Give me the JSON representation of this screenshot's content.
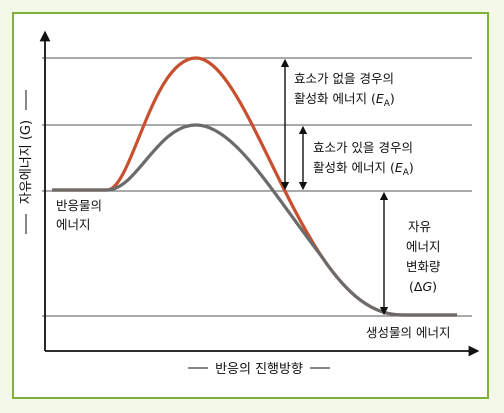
{
  "colors": {
    "frame_background": "#f4f8e6",
    "frame_border": "#7fb03a",
    "uncatalyzed_curve": "#c8502e",
    "catalyzed_curve": "#6b6b6b",
    "reference_lines": "#777777",
    "axes": "#111111"
  },
  "axes": {
    "y_label": "자유에너지 (G)",
    "x_label": "반응의 진행방향"
  },
  "labels": {
    "reactant_line1": "반응물의",
    "reactant_line2": "에너지",
    "product": "생성물의 에너지",
    "ea_without_line1": "효소가 없을 경우의",
    "ea_without_line2": "활성화 에너지 (",
    "ea_with_line1": "효소가 있을 경우의",
    "ea_with_line2": "활성화 에너지 (",
    "ea_symbol": "E",
    "ea_subscript": "A",
    "delta_g_line1": "자유",
    "delta_g_line2": "에너지",
    "delta_g_line3": "변화량",
    "delta_g_line4_open": "(Δ",
    "delta_g_symbol": "G",
    "delta_g_line4_close": ")",
    "close_paren": ")"
  }
}
